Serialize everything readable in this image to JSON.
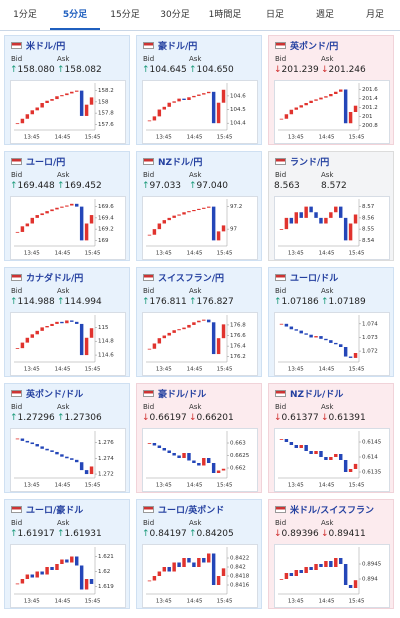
{
  "tabs": [
    "1分足",
    "5分足",
    "15分足",
    "30分足",
    "1時間足",
    "日足",
    "週足",
    "月足"
  ],
  "active_tab": 1,
  "cards": [
    {
      "pair": "米ドル/円",
      "bid_label": "Bid",
      "ask_label": "Ask",
      "bid": "158.080",
      "ask": "158.082",
      "direction": "up",
      "chart": {
        "ylim": [
          157.5,
          158.3
        ],
        "yticks": [
          158.2,
          158,
          157.8,
          157.6
        ],
        "xlabels": [
          "13:45",
          "14:45",
          "15:45"
        ],
        "closes": [
          157.62,
          157.7,
          157.78,
          157.85,
          157.9,
          157.98,
          158.02,
          158.05,
          158.1,
          158.12,
          158.15,
          158.18,
          158.2,
          157.75,
          157.95,
          158.08
        ]
      }
    },
    {
      "pair": "豪ドル/円",
      "bid_label": "Bid",
      "ask_label": "Ask",
      "bid": "104.645",
      "ask": "104.650",
      "direction": "up",
      "chart": {
        "ylim": [
          104.35,
          104.68
        ],
        "yticks": [
          104.6,
          104.5,
          104.4
        ],
        "xlabels": [
          "13:45",
          "14:45",
          "15:45"
        ],
        "closes": [
          104.42,
          104.45,
          104.5,
          104.52,
          104.55,
          104.56,
          104.58,
          104.57,
          104.59,
          104.6,
          104.61,
          104.62,
          104.63,
          104.4,
          104.55,
          104.645
        ]
      }
    },
    {
      "pair": "英ポンド/円",
      "bid_label": "Bid",
      "ask_label": "Ask",
      "bid": "201.239",
      "ask": "201.246",
      "direction": "down",
      "chart": {
        "ylim": [
          200.7,
          201.7
        ],
        "yticks": [
          201.6,
          201.4,
          201.2,
          201,
          200.8
        ],
        "xlabels": [
          "13:45",
          "14:45",
          "15:45"
        ],
        "closes": [
          200.95,
          201.05,
          201.15,
          201.2,
          201.25,
          201.3,
          201.35,
          201.38,
          201.42,
          201.45,
          201.5,
          201.55,
          201.6,
          200.85,
          201.1,
          201.24
        ]
      }
    },
    {
      "pair": "ユーロ/円",
      "bid_label": "Bid",
      "ask_label": "Ask",
      "bid": "169.448",
      "ask": "169.452",
      "direction": "up",
      "chart": {
        "ylim": [
          168.9,
          169.7
        ],
        "yticks": [
          169.6,
          169.4,
          169.2,
          169
        ],
        "xlabels": [
          "13:45",
          "14:45",
          "15:45"
        ],
        "closes": [
          169.15,
          169.25,
          169.3,
          169.4,
          169.45,
          169.48,
          169.52,
          169.55,
          169.58,
          169.6,
          169.62,
          169.65,
          169.6,
          169.0,
          169.3,
          169.45
        ]
      }
    },
    {
      "pair": "NZドル/円",
      "bid_label": "Bid",
      "ask_label": "Ask",
      "bid": "97.033",
      "ask": "97.040",
      "direction": "up",
      "chart": {
        "ylim": [
          96.85,
          97.25
        ],
        "yticks": [
          97.2,
          97
        ],
        "xlabels": [
          "13:45",
          "14:45",
          "15:45"
        ],
        "closes": [
          96.95,
          97.0,
          97.05,
          97.08,
          97.1,
          97.12,
          97.13,
          97.15,
          97.16,
          97.17,
          97.18,
          97.19,
          97.2,
          96.9,
          96.98,
          97.033
        ]
      }
    },
    {
      "pair": "ランド/円",
      "bid_label": "Bid",
      "ask_label": "Ask",
      "bid": "8.563",
      "ask": "8.572",
      "direction": "none",
      "chart": {
        "ylim": [
          8.535,
          8.575
        ],
        "yticks": [
          8.57,
          8.56,
          8.55,
          8.54
        ],
        "xlabels": [
          "13:45",
          "14:45",
          "15:45"
        ],
        "closes": [
          8.55,
          8.56,
          8.555,
          8.565,
          8.56,
          8.57,
          8.565,
          8.56,
          8.555,
          8.56,
          8.565,
          8.57,
          8.56,
          8.54,
          8.555,
          8.563
        ]
      }
    },
    {
      "pair": "カナダドル/円",
      "bid_label": "Bid",
      "ask_label": "Ask",
      "bid": "114.988",
      "ask": "114.994",
      "direction": "up",
      "chart": {
        "ylim": [
          114.5,
          115.15
        ],
        "yticks": [
          115,
          114.8,
          114.6
        ],
        "xlabels": [
          "13:45",
          "14:45",
          "15:45"
        ],
        "closes": [
          114.7,
          114.78,
          114.85,
          114.9,
          114.95,
          115.0,
          115.02,
          115.05,
          115.08,
          115.06,
          115.1,
          115.08,
          115.05,
          114.6,
          114.85,
          114.988
        ]
      }
    },
    {
      "pair": "スイスフラン/円",
      "bid_label": "Bid",
      "ask_label": "Ask",
      "bid": "176.811",
      "ask": "176.827",
      "direction": "up",
      "chart": {
        "ylim": [
          176.1,
          176.95
        ],
        "yticks": [
          176.8,
          176.6,
          176.4,
          176.2
        ],
        "xlabels": [
          "13:45",
          "14:45",
          "15:45"
        ],
        "closes": [
          176.35,
          176.45,
          176.55,
          176.6,
          176.65,
          176.7,
          176.72,
          176.75,
          176.8,
          176.85,
          176.88,
          176.9,
          176.85,
          176.25,
          176.55,
          176.811
        ]
      }
    },
    {
      "pair": "ユーロ/ドル",
      "bid_label": "Bid",
      "ask_label": "Ask",
      "bid": "1.07186",
      "ask": "1.07189",
      "direction": "up",
      "chart": {
        "ylim": [
          1.0712,
          1.0745
        ],
        "yticks": [
          1.074,
          1.073,
          1.072
        ],
        "xlabels": [
          "13:45",
          "14:45",
          "15:45"
        ],
        "closes": [
          1.074,
          1.0738,
          1.0736,
          1.0735,
          1.0733,
          1.0732,
          1.073,
          1.0731,
          1.0729,
          1.0728,
          1.0726,
          1.0725,
          1.0723,
          1.0716,
          1.0715,
          1.07186
        ]
      }
    },
    {
      "pair": "英ポンド/ドル",
      "bid_label": "Bid",
      "ask_label": "Ask",
      "bid": "1.27296",
      "ask": "1.27306",
      "direction": "up",
      "chart": {
        "ylim": [
          1.2715,
          1.2772
        ],
        "yticks": [
          1.276,
          1.274,
          1.272
        ],
        "xlabels": [
          "13:45",
          "14:45",
          "15:45"
        ],
        "closes": [
          1.2765,
          1.2762,
          1.276,
          1.2758,
          1.2755,
          1.2752,
          1.275,
          1.2748,
          1.2745,
          1.2742,
          1.274,
          1.2738,
          1.2735,
          1.2725,
          1.272,
          1.27296
        ]
      }
    },
    {
      "pair": "豪ドル/ドル",
      "bid_label": "Bid",
      "ask_label": "Ask",
      "bid": "0.66197",
      "ask": "0.66201",
      "direction": "down",
      "chart": {
        "ylim": [
          0.6616,
          0.6634
        ],
        "yticks": [
          0.663,
          0.6625,
          0.662
        ],
        "xlabels": [
          "13:45",
          "14:45",
          "15:45"
        ],
        "closes": [
          0.663,
          0.6629,
          0.6628,
          0.6627,
          0.6626,
          0.6625,
          0.6624,
          0.6626,
          0.6623,
          0.6622,
          0.6621,
          0.6624,
          0.6622,
          0.6618,
          0.6619,
          0.66197
        ]
      }
    },
    {
      "pair": "NZドル/ドル",
      "bid_label": "Bid",
      "ask_label": "Ask",
      "bid": "0.61377",
      "ask": "0.61391",
      "direction": "down",
      "chart": {
        "ylim": [
          0.6133,
          0.6148
        ],
        "yticks": [
          0.6145,
          0.614,
          0.6135
        ],
        "xlabels": [
          "13:45",
          "14:45",
          "15:45"
        ],
        "closes": [
          0.6146,
          0.6145,
          0.6144,
          0.6143,
          0.6144,
          0.6142,
          0.6141,
          0.6142,
          0.614,
          0.6139,
          0.614,
          0.6141,
          0.6139,
          0.6135,
          0.6136,
          0.61377
        ]
      }
    },
    {
      "pair": "ユーロ/豪ドル",
      "bid_label": "Bid",
      "ask_label": "Ask",
      "bid": "1.61917",
      "ask": "1.61931",
      "direction": "up",
      "chart": {
        "ylim": [
          1.6185,
          1.6215
        ],
        "yticks": [
          1.621,
          1.62,
          1.619
        ],
        "xlabels": [
          "13:45",
          "14:45",
          "15:45"
        ],
        "closes": [
          1.6192,
          1.6195,
          1.6198,
          1.6196,
          1.62,
          1.6198,
          1.6203,
          1.6201,
          1.6205,
          1.6208,
          1.6206,
          1.621,
          1.6204,
          1.6188,
          1.6195,
          1.61917
        ]
      }
    },
    {
      "pair": "ユーロ/英ポンド",
      "bid_label": "Bid",
      "ask_label": "Ask",
      "bid": "0.84197",
      "ask": "0.84205",
      "direction": "up",
      "chart": {
        "ylim": [
          0.8414,
          0.8424
        ],
        "yticks": [
          0.8422,
          0.842,
          0.8418,
          0.8416
        ],
        "xlabels": [
          "13:45",
          "14:45",
          "15:45"
        ],
        "closes": [
          0.8417,
          0.8418,
          0.8419,
          0.842,
          0.8419,
          0.8421,
          0.842,
          0.8422,
          0.8421,
          0.842,
          0.8422,
          0.8421,
          0.8423,
          0.8416,
          0.8418,
          0.84197
        ]
      }
    },
    {
      "pair": "米ドル/スイスフラン",
      "bid_label": "Bid",
      "ask_label": "Ask",
      "bid": "0.89396",
      "ask": "0.89411",
      "direction": "down",
      "chart": {
        "ylim": [
          0.8935,
          0.895
        ],
        "yticks": [
          0.8945,
          0.894
        ],
        "xlabels": [
          "13:45",
          "14:45",
          "15:45"
        ],
        "closes": [
          0.894,
          0.8942,
          0.8941,
          0.8943,
          0.8942,
          0.8944,
          0.8943,
          0.8945,
          0.8944,
          0.8946,
          0.8944,
          0.8947,
          0.8945,
          0.8938,
          0.8937,
          0.89396
        ]
      }
    }
  ]
}
